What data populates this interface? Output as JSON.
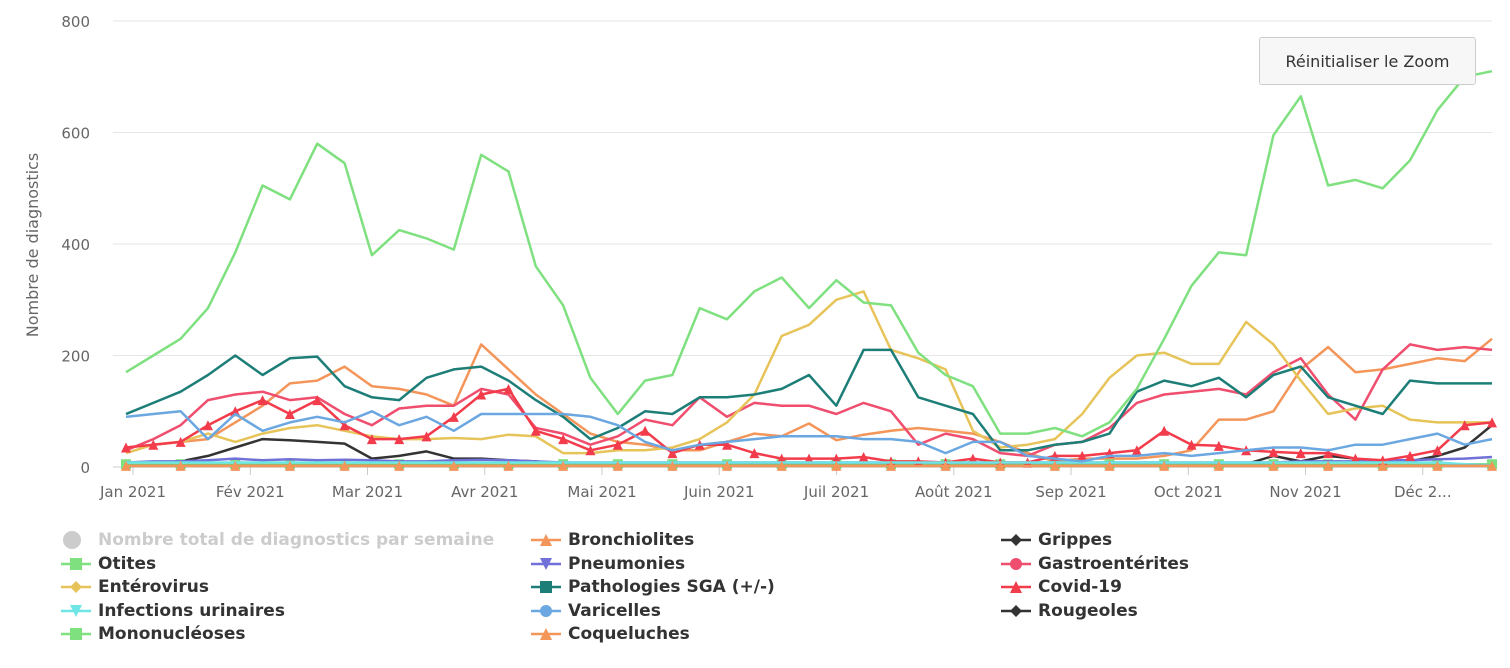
{
  "reset_zoom_label": "Réinitialiser le Zoom",
  "chart_data": {
    "type": "line",
    "ylabel": "Nombre de diagnostics",
    "xlabel": "",
    "ylim": [
      0,
      800
    ],
    "yticks": [
      0,
      200,
      400,
      600,
      800
    ],
    "month_labels": [
      "Jan 2021",
      "Fév 2021",
      "Mar 2021",
      "Avr 2021",
      "Mai 2021",
      "Juin 2021",
      "Juil 2021",
      "Août 2021",
      "Sep 2021",
      "Oct 2021",
      "Nov 2021",
      "Déc 2..."
    ],
    "x_weeks": 51,
    "legend_disabled": {
      "name": "Nombre total de diagnostics par semaine",
      "color": "#cccccc",
      "marker": "circle"
    },
    "series": [
      {
        "name": "Bronchiolites",
        "color": "#f4955a",
        "marker": "triangle",
        "values": [
          35,
          40,
          45,
          50,
          80,
          110,
          150,
          155,
          180,
          145,
          140,
          130,
          110,
          220,
          175,
          130,
          95,
          60,
          45,
          40,
          30,
          30,
          45,
          60,
          55,
          78,
          48,
          58,
          65,
          70,
          65,
          60,
          45,
          25,
          10,
          15,
          15,
          15,
          20,
          30,
          85,
          85,
          100,
          175,
          215,
          170,
          175,
          185,
          195,
          190,
          230
        ]
      },
      {
        "name": "Grippes",
        "color": "#333333",
        "marker": "diamond",
        "values": [
          2,
          5,
          10,
          20,
          35,
          50,
          48,
          45,
          42,
          15,
          20,
          28,
          15,
          15,
          12,
          10,
          5,
          5,
          5,
          5,
          5,
          5,
          5,
          5,
          5,
          5,
          5,
          5,
          5,
          5,
          5,
          5,
          5,
          5,
          5,
          5,
          5,
          5,
          5,
          5,
          5,
          5,
          20,
          10,
          20,
          15,
          10,
          10,
          20,
          35,
          75
        ]
      },
      {
        "name": "Otites",
        "color": "#7fe07f",
        "marker": "square",
        "values": [
          5,
          5,
          5,
          5,
          5,
          5,
          5,
          5,
          5,
          5,
          5,
          5,
          5,
          5,
          5,
          5,
          5,
          5,
          5,
          5,
          5,
          5,
          5,
          5,
          5,
          5,
          5,
          5,
          5,
          5,
          5,
          5,
          5,
          5,
          5,
          5,
          5,
          5,
          5,
          5,
          5,
          5,
          5,
          5,
          5,
          5,
          5,
          5,
          5,
          5,
          5
        ]
      },
      {
        "name": "Pneumonies",
        "color": "#7070d8",
        "marker": "triangle-down",
        "values": [
          8,
          10,
          10,
          12,
          15,
          12,
          14,
          12,
          13,
          12,
          10,
          10,
          12,
          13,
          12,
          10,
          8,
          8,
          8,
          8,
          8,
          8,
          8,
          8,
          8,
          8,
          8,
          8,
          8,
          8,
          8,
          8,
          8,
          8,
          8,
          8,
          8,
          8,
          8,
          8,
          8,
          8,
          8,
          10,
          10,
          10,
          12,
          12,
          14,
          15,
          18
        ]
      },
      {
        "name": "Gastroentérites",
        "color": "#f04e6e",
        "marker": "circle",
        "values": [
          30,
          50,
          75,
          120,
          130,
          135,
          120,
          125,
          95,
          75,
          105,
          110,
          110,
          140,
          130,
          70,
          60,
          40,
          55,
          85,
          75,
          125,
          90,
          115,
          110,
          110,
          95,
          115,
          100,
          40,
          60,
          50,
          25,
          20,
          40,
          45,
          70,
          115,
          130,
          135,
          140,
          130,
          170,
          195,
          130,
          85,
          175,
          220,
          210,
          215,
          210
        ]
      },
      {
        "name": "Entérovirus",
        "color": "#e7c45a",
        "marker": "diamond",
        "values": [
          25,
          40,
          45,
          60,
          45,
          60,
          70,
          75,
          65,
          55,
          50,
          50,
          52,
          50,
          58,
          55,
          25,
          25,
          30,
          30,
          35,
          50,
          80,
          130,
          235,
          255,
          300,
          315,
          210,
          195,
          175,
          65,
          35,
          40,
          50,
          95,
          160,
          200,
          205,
          185,
          185,
          260,
          220,
          155,
          95,
          105,
          110,
          85,
          80,
          80,
          80
        ]
      },
      {
        "name": "Pathologies SGA (+/-)",
        "color": "#1d7e78",
        "marker": "square",
        "values": [
          95,
          115,
          135,
          165,
          200,
          165,
          195,
          198,
          145,
          125,
          120,
          160,
          175,
          180,
          155,
          120,
          90,
          50,
          70,
          100,
          95,
          125,
          125,
          130,
          140,
          165,
          110,
          210,
          210,
          125,
          110,
          95,
          30,
          30,
          40,
          45,
          60,
          135,
          155,
          145,
          160,
          125,
          165,
          180,
          125,
          110,
          95,
          155,
          150,
          150,
          150
        ]
      },
      {
        "name": "Covid-19",
        "color": "#f23c4c",
        "marker": "triangle",
        "values": [
          35,
          40,
          45,
          75,
          100,
          120,
          95,
          120,
          75,
          50,
          50,
          55,
          90,
          130,
          140,
          65,
          50,
          30,
          40,
          65,
          25,
          40,
          40,
          25,
          15,
          15,
          15,
          18,
          10,
          10,
          8,
          15,
          8,
          8,
          20,
          20,
          25,
          30,
          65,
          40,
          38,
          30,
          27,
          25,
          25,
          15,
          12,
          20,
          30,
          75,
          80
        ]
      },
      {
        "name": "Infections urinaires",
        "color": "#70e5e5",
        "marker": "triangle-down",
        "values": [
          8,
          8,
          8,
          8,
          8,
          8,
          8,
          8,
          8,
          8,
          8,
          8,
          8,
          8,
          8,
          8,
          8,
          8,
          8,
          8,
          8,
          8,
          8,
          8,
          8,
          8,
          8,
          8,
          8,
          8,
          8,
          8,
          8,
          8,
          8,
          8,
          8,
          8,
          8,
          8,
          8,
          8,
          8,
          8,
          8,
          8,
          8,
          8,
          8,
          5,
          3
        ]
      },
      {
        "name": "Varicelles",
        "color": "#6ba7e0",
        "marker": "circle",
        "values": [
          90,
          95,
          100,
          50,
          95,
          65,
          80,
          90,
          80,
          100,
          75,
          90,
          65,
          95,
          95,
          95,
          95,
          90,
          75,
          45,
          30,
          40,
          45,
          50,
          55,
          55,
          55,
          50,
          50,
          45,
          25,
          45,
          45,
          20,
          15,
          10,
          20,
          20,
          25,
          20,
          25,
          30,
          35,
          35,
          30,
          40,
          40,
          50,
          60,
          40,
          50
        ]
      },
      {
        "name": "Rougeoles",
        "color": "#333333",
        "marker": "diamond",
        "values": [
          2,
          2,
          2,
          2,
          2,
          2,
          2,
          2,
          2,
          2,
          2,
          2,
          2,
          2,
          2,
          2,
          2,
          2,
          2,
          2,
          2,
          2,
          2,
          2,
          2,
          2,
          2,
          2,
          2,
          2,
          2,
          2,
          2,
          2,
          2,
          2,
          2,
          2,
          2,
          2,
          2,
          2,
          2,
          2,
          2,
          2,
          2,
          2,
          2,
          2,
          2
        ]
      },
      {
        "name": "Mononucléoses",
        "color": "#7fe07f",
        "marker": "square",
        "values": [
          170,
          200,
          230,
          285,
          385,
          505,
          480,
          580,
          545,
          380,
          425,
          410,
          390,
          560,
          530,
          360,
          290,
          160,
          95,
          155,
          165,
          285,
          265,
          315,
          340,
          285,
          335,
          295,
          290,
          205,
          165,
          145,
          60,
          60,
          70,
          55,
          80,
          140,
          230,
          325,
          385,
          380,
          595,
          665,
          505,
          515,
          500,
          550,
          640,
          700,
          710
        ]
      },
      {
        "name": "Coqueluches",
        "color": "#f4955a",
        "marker": "triangle",
        "values": [
          2,
          2,
          2,
          2,
          2,
          2,
          2,
          2,
          2,
          2,
          2,
          2,
          2,
          2,
          2,
          2,
          2,
          2,
          2,
          2,
          2,
          2,
          2,
          2,
          2,
          2,
          2,
          2,
          2,
          2,
          2,
          2,
          2,
          2,
          2,
          2,
          2,
          2,
          2,
          2,
          2,
          2,
          2,
          2,
          2,
          2,
          2,
          2,
          2,
          2,
          2
        ]
      }
    ]
  }
}
